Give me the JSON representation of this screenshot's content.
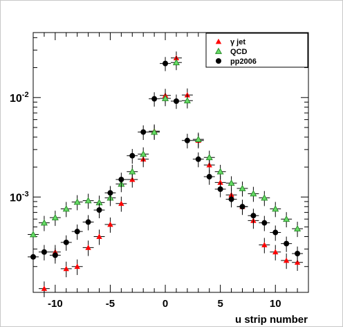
{
  "chart_data": {
    "type": "scatter",
    "title": "",
    "xlabel": "u strip number",
    "ylabel": "",
    "xlim": [
      -12,
      13
    ],
    "ylim": [
      0.00011,
      0.045
    ],
    "yscale": "log",
    "grid": false,
    "legend_position": "top-right",
    "x_ticks": [
      -10,
      -5,
      0,
      5,
      10
    ],
    "y_ticks": [
      {
        "value": 0.001,
        "base": "10",
        "exp": "-3"
      },
      {
        "value": 0.01,
        "base": "10",
        "exp": "-2"
      }
    ],
    "series": [
      {
        "name": "γ jet",
        "marker": "triangle",
        "color": "#ff0000",
        "x": [
          -11,
          -10,
          -9,
          -8,
          -7,
          -6,
          -5,
          -4,
          -3,
          -2,
          -1,
          0,
          1,
          2,
          3,
          4,
          5,
          6,
          7,
          8,
          9,
          10,
          11,
          12
        ],
        "y": [
          0.00012,
          0.00028,
          0.00019,
          0.0002,
          0.00031,
          0.0004,
          0.00053,
          0.00086,
          0.0015,
          0.0024,
          0.0046,
          0.0105,
          0.025,
          0.0106,
          0.0037,
          0.0021,
          0.0014,
          0.00105,
          0.0008,
          0.00058,
          0.00033,
          0.00028,
          0.00023,
          0.00022
        ]
      },
      {
        "name": "QCD",
        "marker": "triangle",
        "color": "#66dd66",
        "x": [
          -12,
          -11,
          -10,
          -9,
          -8,
          -7,
          -6,
          -5,
          -4,
          -3,
          -2,
          -1,
          0,
          1,
          2,
          3,
          4,
          5,
          6,
          7,
          8,
          9,
          10,
          11,
          12
        ],
        "y": [
          0.00042,
          0.00055,
          0.00062,
          0.00076,
          0.00089,
          0.00092,
          0.00088,
          0.00098,
          0.00135,
          0.0018,
          0.0027,
          0.0045,
          0.0098,
          0.0225,
          0.0093,
          0.0038,
          0.0025,
          0.0018,
          0.00138,
          0.00122,
          0.00108,
          0.00098,
          0.00076,
          0.0006,
          0.00048
        ]
      },
      {
        "name": "pp2006",
        "marker": "circle",
        "color": "#000000",
        "x": [
          -12,
          -11,
          -10,
          -9,
          -8,
          -7,
          -6,
          -5,
          -4,
          -3,
          -2,
          -1,
          0,
          1,
          2,
          3,
          4,
          5,
          6,
          7,
          8,
          9,
          10,
          11,
          12
        ],
        "y": [
          0.00025,
          0.00028,
          0.00026,
          0.00035,
          0.00045,
          0.00056,
          0.00074,
          0.0011,
          0.0015,
          0.0026,
          0.0045,
          0.0097,
          0.022,
          0.0092,
          0.0037,
          0.0024,
          0.0016,
          0.0012,
          0.00095,
          0.0008,
          0.00065,
          0.00055,
          0.00044,
          0.00034,
          0.00027
        ]
      }
    ]
  }
}
